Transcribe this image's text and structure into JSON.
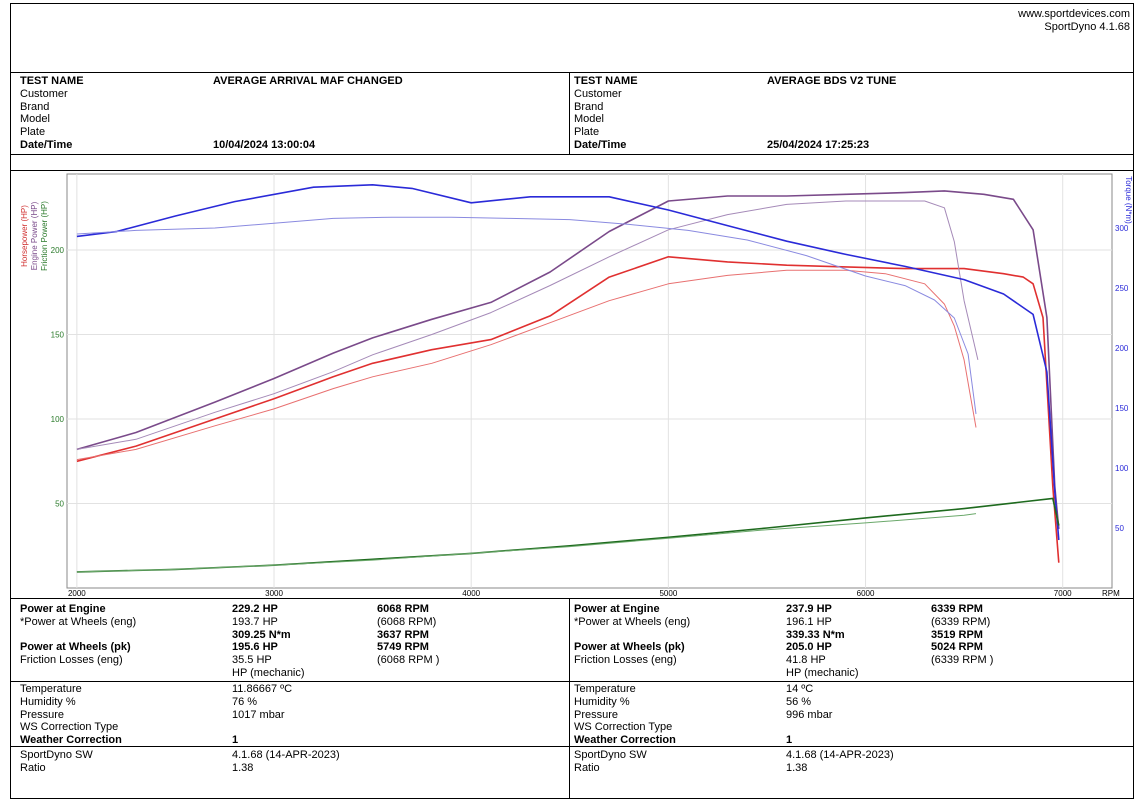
{
  "header": {
    "site": "www.sportdevices.com",
    "app": "SportDyno 4.1.68"
  },
  "left": {
    "test_name_label": "TEST NAME",
    "test_name": "AVERAGE ARRIVAL MAF CHANGED",
    "customer_label": "Customer",
    "brand_label": "Brand",
    "model_label": "Model",
    "plate_label": "Plate",
    "datetime_label": "Date/Time",
    "datetime": "10/04/2024 13:00:04",
    "pe_label": "Power at Engine",
    "pe_hp": "229.2 HP",
    "pe_rpm": "6068 RPM",
    "pwe_label": "*Power at Wheels (eng)",
    "pwe_hp": "193.7 HP",
    "pwe_rpm": "(6068 RPM)",
    "torque": "309.25 N*m",
    "torque_rpm": "3637 RPM",
    "pwp_label": "Power at Wheels (pk)",
    "pwp_hp": "195.6 HP",
    "pwp_rpm": "5749 RPM",
    "fl_label": "Friction Losses (eng)",
    "fl_hp": "35.5 HP",
    "fl_rpm": "(6068 RPM )",
    "mech": "HP (mechanic)",
    "temp_label": "Temperature",
    "temp": "11.86667 ºC",
    "hum_label": "Humidity %",
    "hum": "76 %",
    "press_label": "Pressure",
    "press": "1017 mbar",
    "ws_label": "WS Correction Type",
    "wc_label": "Weather Correction",
    "wc": "1",
    "sw_label": "SportDyno SW",
    "sw": "4.1.68 (14-APR-2023)",
    "ratio_label": "Ratio",
    "ratio": "1.38"
  },
  "right": {
    "test_name_label": "TEST NAME",
    "test_name": "AVERAGE BDS V2 TUNE",
    "customer_label": "Customer",
    "brand_label": "Brand",
    "model_label": "Model",
    "plate_label": "Plate",
    "datetime_label": "Date/Time",
    "datetime": "25/04/2024 17:25:23",
    "pe_label": "Power at Engine",
    "pe_hp": "237.9 HP",
    "pe_rpm": "6339 RPM",
    "pwe_label": "*Power at Wheels (eng)",
    "pwe_hp": "196.1 HP",
    "pwe_rpm": "(6339 RPM)",
    "torque": "339.33 N*m",
    "torque_rpm": "3519 RPM",
    "pwp_label": "Power at Wheels (pk)",
    "pwp_hp": "205.0 HP",
    "pwp_rpm": "5024 RPM",
    "fl_label": "Friction Losses (eng)",
    "fl_hp": "41.8 HP",
    "fl_rpm": "(6339 RPM )",
    "mech": "HP (mechanic)",
    "temp_label": "Temperature",
    "temp": "14 ºC",
    "hum_label": "Humidity %",
    "hum": "56 %",
    "press_label": "Pressure",
    "press": "996 mbar",
    "ws_label": "WS Correction Type",
    "wc_label": "Weather Correction",
    "wc": "1",
    "sw_label": "SportDyno SW",
    "sw": "4.1.68 (14-APR-2023)",
    "ratio_label": "Ratio",
    "ratio": "1.38"
  },
  "chart_data": {
    "type": "line",
    "xlim": [
      1950,
      7250
    ],
    "ylim_left": [
      0,
      245
    ],
    "ylim_right": [
      0,
      345
    ],
    "x_ticks": [
      2000,
      3000,
      4000,
      5000,
      6000,
      7000
    ],
    "x_unit": "RPM",
    "y_left_ticks": [
      50,
      100,
      150,
      200
    ],
    "y_right_ticks": [
      50,
      100,
      150,
      200,
      250,
      300
    ],
    "y_left_labels": [
      "Horsepower (HP)",
      "Engine Power (HP)",
      "Friction Power (HP)"
    ],
    "y_left_label_colors": [
      "#d03030",
      "#7a4a8a",
      "#2a7a2a"
    ],
    "y_right_label": "Torque (N*m)",
    "series": [
      {
        "axis": "left",
        "color": "#e03030",
        "width": 1.6,
        "x": [
          2000,
          2300,
          2700,
          3000,
          3300,
          3500,
          3800,
          4100,
          4400,
          4700,
          5000,
          5300,
          5600,
          5900,
          6200,
          6500,
          6700,
          6800,
          6850,
          6900,
          6950,
          6980
        ],
        "y": [
          75,
          84,
          100,
          112,
          125,
          133,
          141,
          147,
          161,
          184,
          196,
          193,
          191,
          190,
          189,
          189,
          186,
          184,
          180,
          160,
          60,
          15
        ]
      },
      {
        "axis": "left",
        "color": "#7a4a8a",
        "width": 1.6,
        "x": [
          2000,
          2300,
          2700,
          3000,
          3300,
          3500,
          3800,
          4100,
          4400,
          4700,
          5000,
          5300,
          5600,
          5900,
          6200,
          6400,
          6600,
          6750,
          6850,
          6920,
          6960,
          6980
        ],
        "y": [
          82,
          92,
          110,
          124,
          139,
          148,
          159,
          169,
          187,
          211,
          229,
          232,
          232,
          233,
          234,
          235,
          233,
          230,
          212,
          160,
          60,
          35
        ]
      },
      {
        "axis": "left",
        "color": "#e87070",
        "width": 1.0,
        "x": [
          2000,
          2300,
          2700,
          3000,
          3300,
          3500,
          3800,
          4100,
          4400,
          4700,
          5000,
          5300,
          5600,
          5900,
          6100,
          6300,
          6400,
          6450,
          6500,
          6530,
          6560
        ],
        "y": [
          76,
          82,
          96,
          106,
          118,
          125,
          133,
          144,
          157,
          170,
          180,
          185,
          188,
          188,
          186,
          180,
          168,
          155,
          135,
          115,
          95
        ]
      },
      {
        "axis": "left",
        "color": "#a58ab8",
        "width": 1.0,
        "x": [
          2000,
          2300,
          2700,
          3000,
          3300,
          3500,
          3800,
          4100,
          4400,
          4700,
          5000,
          5300,
          5600,
          5900,
          6100,
          6300,
          6400,
          6450,
          6500,
          6550,
          6570
        ],
        "y": [
          82,
          88,
          104,
          115,
          128,
          138,
          150,
          163,
          179,
          196,
          212,
          221,
          227,
          229,
          229,
          229,
          225,
          205,
          170,
          145,
          135
        ]
      },
      {
        "axis": "right",
        "color": "#2a2ad8",
        "width": 1.6,
        "x": [
          2000,
          2200,
          2500,
          2800,
          3200,
          3500,
          3700,
          4000,
          4300,
          4700,
          5000,
          5300,
          5600,
          5900,
          6200,
          6500,
          6700,
          6850,
          6920,
          6960,
          6980
        ],
        "y": [
          293,
          297,
          310,
          322,
          334,
          336,
          333,
          321,
          326,
          326,
          315,
          302,
          289,
          278,
          268,
          257,
          245,
          228,
          180,
          80,
          40
        ]
      },
      {
        "axis": "right",
        "color": "#8a8ae0",
        "width": 1.0,
        "x": [
          2000,
          2300,
          2700,
          3000,
          3300,
          3600,
          3900,
          4200,
          4500,
          4800,
          5100,
          5400,
          5700,
          6000,
          6200,
          6350,
          6450,
          6520,
          6560
        ],
        "y": [
          295,
          298,
          300,
          304,
          308,
          309,
          309,
          308,
          307,
          303,
          298,
          290,
          277,
          260,
          252,
          240,
          225,
          195,
          145
        ]
      },
      {
        "axis": "left",
        "color": "#1e6a1e",
        "width": 1.6,
        "x": [
          2000,
          2500,
          3000,
          3500,
          4000,
          4500,
          5000,
          5500,
          6000,
          6500,
          6950,
          6980
        ],
        "y": [
          9.5,
          11,
          13.5,
          17,
          20.5,
          25,
          30,
          35.5,
          41.5,
          47,
          53,
          37
        ]
      },
      {
        "axis": "left",
        "color": "#6aa86a",
        "width": 1.0,
        "x": [
          2000,
          2500,
          3000,
          3500,
          4000,
          4500,
          5000,
          5500,
          6000,
          6500,
          6560
        ],
        "y": [
          9.5,
          11,
          13.5,
          16.5,
          20.5,
          24.5,
          29.5,
          34.5,
          38.5,
          43,
          44
        ]
      }
    ]
  }
}
